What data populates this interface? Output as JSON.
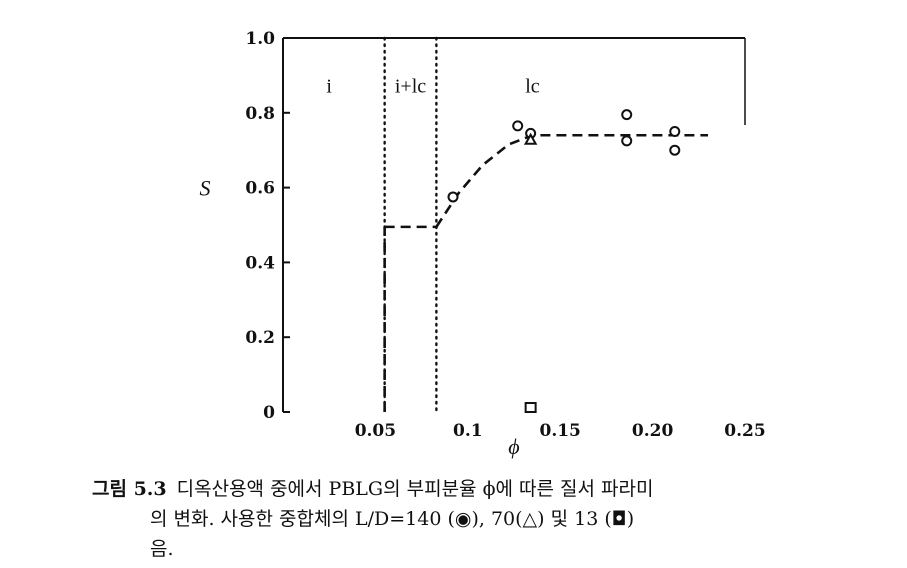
{
  "chart_data": {
    "type": "scatter",
    "xlabel": "ϕ",
    "ylabel": "S",
    "xlim": [
      0.0,
      0.25
    ],
    "ylim": [
      0,
      1.0
    ],
    "x_ticks": [
      0.05,
      0.1,
      0.15,
      0.2,
      0.25
    ],
    "x_tick_labels": [
      "0.05",
      "0.1",
      "0.15",
      "0.20",
      "0.25"
    ],
    "y_ticks": [
      0,
      0.2,
      0.4,
      0.6,
      0.8,
      1.0
    ],
    "y_tick_labels": [
      "0",
      "0.2",
      "0.4",
      "0.6",
      "0.8",
      "1.0"
    ],
    "phase_boundaries": [
      0.055,
      0.083
    ],
    "phase_labels": [
      {
        "text": "i",
        "x": 0.025,
        "y": 0.87
      },
      {
        "text": "i+lc",
        "x": 0.069,
        "y": 0.87
      },
      {
        "text": "lc",
        "x": 0.135,
        "y": 0.87
      }
    ],
    "series": [
      {
        "marker": "circle",
        "points": [
          [
            0.092,
            0.575
          ],
          [
            0.127,
            0.765
          ],
          [
            0.134,
            0.745
          ],
          [
            0.186,
            0.795
          ],
          [
            0.186,
            0.725
          ],
          [
            0.212,
            0.75
          ],
          [
            0.212,
            0.7
          ]
        ]
      },
      {
        "marker": "triangle",
        "points": [
          [
            0.134,
            0.728
          ]
        ]
      },
      {
        "marker": "square",
        "points": [
          [
            0.134,
            0.0
          ]
        ]
      }
    ],
    "trend_segments": [
      {
        "style": "dashed",
        "points": [
          [
            0.055,
            0.0
          ],
          [
            0.055,
            0.495
          ]
        ]
      },
      {
        "style": "dashed",
        "points": [
          [
            0.055,
            0.495
          ],
          [
            0.083,
            0.495
          ]
        ]
      },
      {
        "style": "dashed",
        "points": [
          [
            0.083,
            0.495
          ],
          [
            0.095,
            0.585
          ],
          [
            0.108,
            0.66
          ],
          [
            0.122,
            0.715
          ],
          [
            0.135,
            0.74
          ],
          [
            0.23,
            0.74
          ]
        ]
      }
    ]
  },
  "caption": {
    "figure_number": "그림 5.3",
    "line1": "디옥산용액 중에서 PBLG의 부피분율 ϕ에 따른 질서 파라미",
    "line2": "의 변화. 사용한 중합체의 L/D=140 (◉), 70(△) 및 13 (◘)",
    "line3": "음."
  }
}
